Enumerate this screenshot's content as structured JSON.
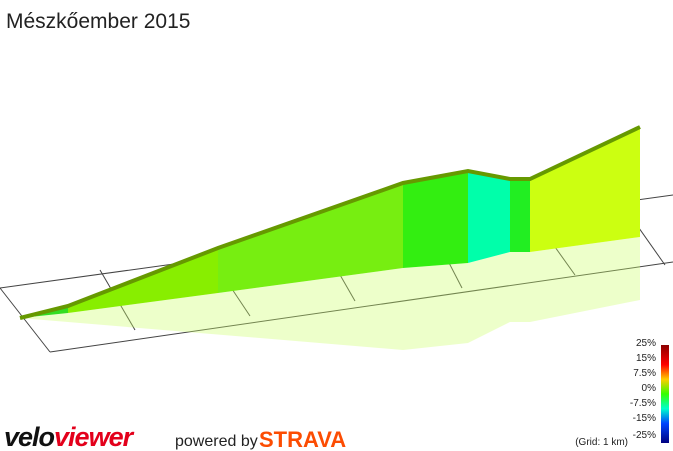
{
  "header": {
    "title": "Mészkőember 2015"
  },
  "legend": {
    "labels": [
      "25%",
      "15%",
      "7.5%",
      "0%",
      "-7.5%",
      "-15%",
      "-25%"
    ],
    "grid_note": "(Grid: 1 km)"
  },
  "footer": {
    "logo_velo": "velo",
    "logo_viewer": "viewer",
    "powered_by": "powered by",
    "strava": "STRAVA"
  }
}
